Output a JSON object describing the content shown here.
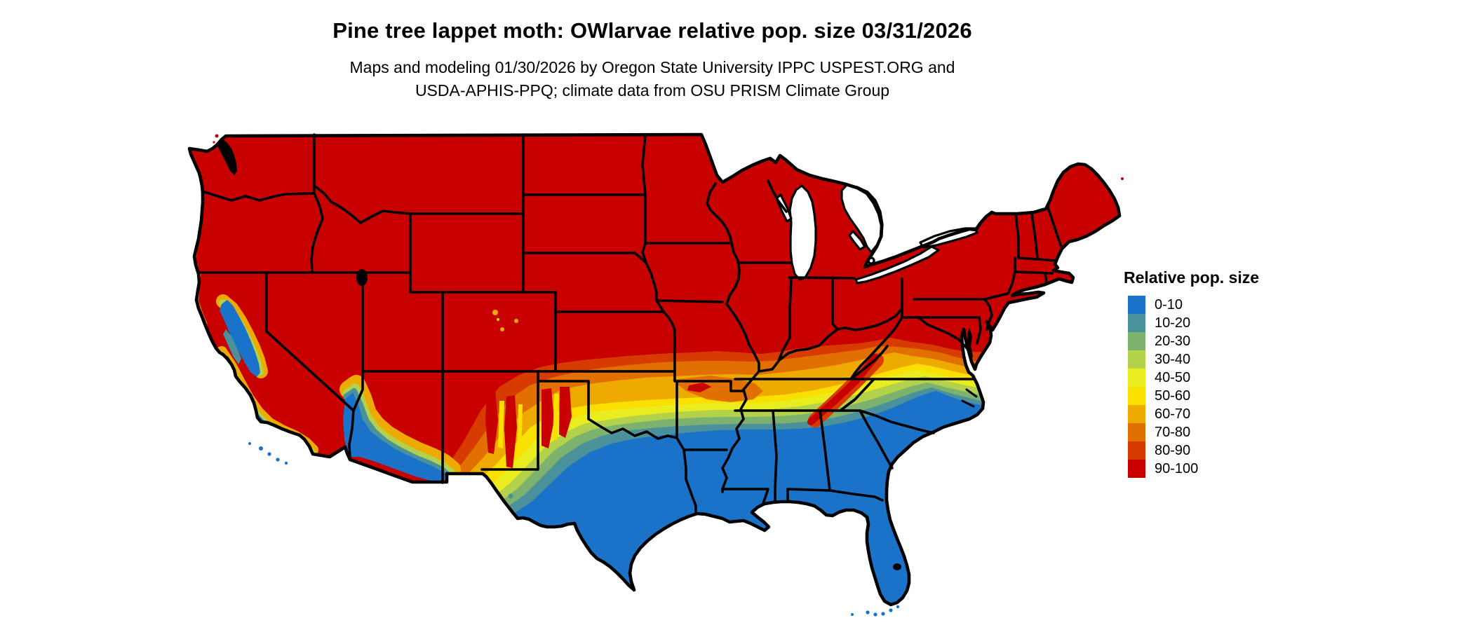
{
  "title": "Pine tree lappet moth: OWlarvae relative pop. size 03/31/2026",
  "subtitle_line1": "Maps and modeling 01/30/2026 by Oregon State University IPPC USPEST.ORG and",
  "subtitle_line2": "USDA-APHIS-PPQ; climate data from OSU PRISM Climate Group",
  "legend": {
    "title": "Relative pop. size",
    "items": [
      {
        "label": "0-10",
        "color": "#1a73c8"
      },
      {
        "label": "10-20",
        "color": "#4b919c"
      },
      {
        "label": "20-30",
        "color": "#7db26e"
      },
      {
        "label": "30-40",
        "color": "#b3d14b"
      },
      {
        "label": "40-50",
        "color": "#e9ec1e"
      },
      {
        "label": "50-60",
        "color": "#fae000"
      },
      {
        "label": "60-70",
        "color": "#eeaa00"
      },
      {
        "label": "70-80",
        "color": "#e17000"
      },
      {
        "label": "80-90",
        "color": "#d73b00"
      },
      {
        "label": "90-100",
        "color": "#c80000"
      }
    ]
  },
  "map": {
    "region": "Continental United States",
    "water_color": "#ffffff",
    "boundary_color": "#000000",
    "dominant_north_class": "90-100",
    "dominant_south_class": "0-10"
  }
}
